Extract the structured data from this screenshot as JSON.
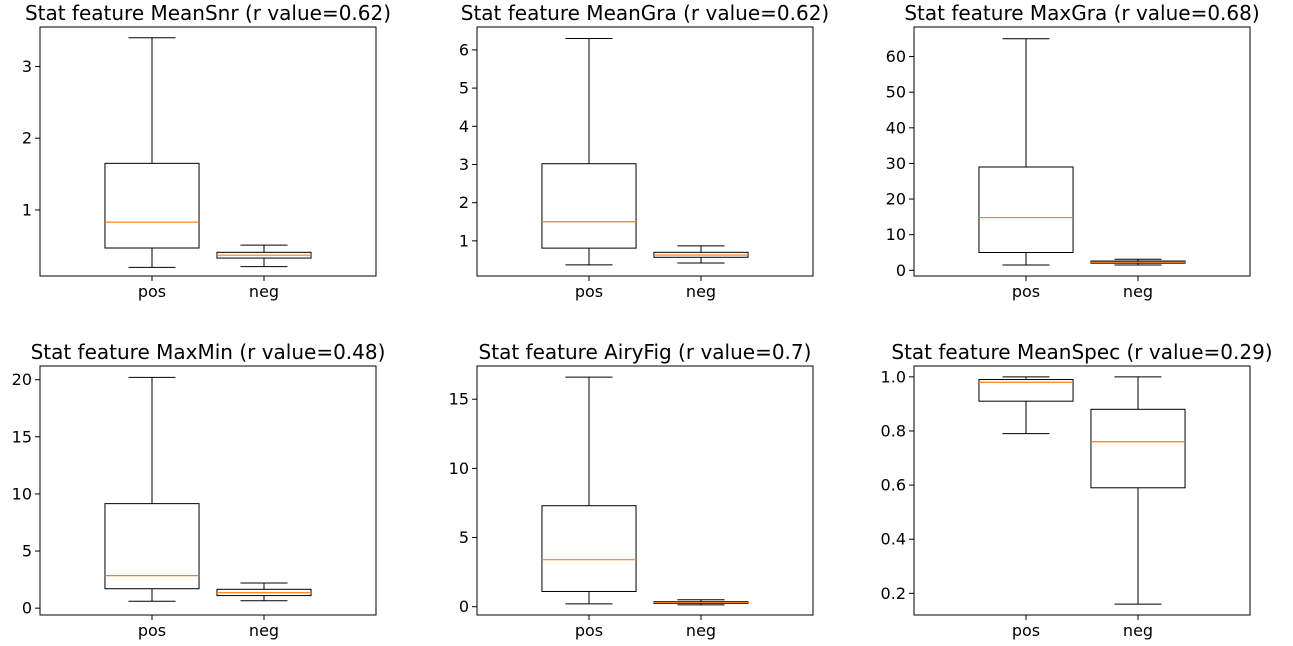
{
  "chart_data": [
    {
      "type": "box",
      "title": "Stat feature MeanSnr (r value=0.62)",
      "categories": [
        "pos",
        "neg"
      ],
      "yticks": [
        1,
        2,
        3
      ],
      "ylim": [
        0.08,
        3.55
      ],
      "boxes": [
        {
          "name": "pos",
          "whislo": 0.2,
          "q1": 0.47,
          "med": 0.83,
          "q3": 1.65,
          "whishi": 3.4
        },
        {
          "name": "neg",
          "whislo": 0.21,
          "q1": 0.33,
          "med": 0.37,
          "q3": 0.41,
          "whishi": 0.51
        }
      ],
      "colors": {
        "box": "#000000",
        "median": "#ff7f0e"
      }
    },
    {
      "type": "box",
      "title": "Stat feature MeanGra (r value=0.62)",
      "categories": [
        "pos",
        "neg"
      ],
      "yticks": [
        1,
        2,
        3,
        4,
        5,
        6
      ],
      "ylim": [
        0.08,
        6.6
      ],
      "boxes": [
        {
          "name": "pos",
          "whislo": 0.37,
          "q1": 0.81,
          "med": 1.5,
          "q3": 3.02,
          "whishi": 6.3
        },
        {
          "name": "neg",
          "whislo": 0.42,
          "q1": 0.57,
          "med": 0.63,
          "q3": 0.7,
          "whishi": 0.87
        }
      ],
      "colors": {
        "box": "#000000",
        "median": "#ff7f0e"
      }
    },
    {
      "type": "box",
      "title": "Stat feature MaxGra (r value=0.68)",
      "categories": [
        "pos",
        "neg"
      ],
      "yticks": [
        0,
        10,
        20,
        30,
        40,
        50,
        60
      ],
      "ylim": [
        -1.6,
        68.3
      ],
      "boxes": [
        {
          "name": "pos",
          "whislo": 1.5,
          "q1": 5.0,
          "med": 14.8,
          "q3": 29.0,
          "whishi": 65.0
        },
        {
          "name": "neg",
          "whislo": 1.5,
          "q1": 2.0,
          "med": 2.3,
          "q3": 2.6,
          "whishi": 3.1
        }
      ],
      "colors": {
        "box": "#000000",
        "median": "#ff7f0e"
      }
    },
    {
      "type": "box",
      "title": "Stat feature MaxMin (r value=0.48)",
      "categories": [
        "pos",
        "neg"
      ],
      "yticks": [
        0,
        5,
        10,
        15,
        20
      ],
      "ylim": [
        -0.6,
        21.2
      ],
      "boxes": [
        {
          "name": "pos",
          "whislo": 0.6,
          "q1": 1.7,
          "med": 2.85,
          "q3": 9.15,
          "whishi": 20.2
        },
        {
          "name": "neg",
          "whislo": 0.65,
          "q1": 1.1,
          "med": 1.35,
          "q3": 1.65,
          "whishi": 2.2
        }
      ],
      "colors": {
        "box": "#000000",
        "median": "#ff7f0e"
      }
    },
    {
      "type": "box",
      "title": "Stat feature AiryFig (r value=0.7)",
      "categories": [
        "pos",
        "neg"
      ],
      "yticks": [
        0,
        5,
        10,
        15
      ],
      "ylim": [
        -0.6,
        17.4
      ],
      "boxes": [
        {
          "name": "pos",
          "whislo": 0.2,
          "q1": 1.1,
          "med": 3.4,
          "q3": 7.3,
          "whishi": 16.6
        },
        {
          "name": "neg",
          "whislo": 0.13,
          "q1": 0.24,
          "med": 0.3,
          "q3": 0.36,
          "whishi": 0.5
        }
      ],
      "colors": {
        "box": "#000000",
        "median": "#ff7f0e"
      }
    },
    {
      "type": "box",
      "title": "Stat feature MeanSpec (r value=0.29)",
      "categories": [
        "pos",
        "neg"
      ],
      "yticks": [
        0.2,
        0.4,
        0.6,
        0.8,
        1.0
      ],
      "yticklabels": [
        "0.2",
        "0.4",
        "0.6",
        "0.8",
        "1.0"
      ],
      "ylim": [
        0.12,
        1.04
      ],
      "boxes": [
        {
          "name": "pos",
          "whislo": 0.79,
          "q1": 0.91,
          "med": 0.98,
          "q3": 0.99,
          "whishi": 1.0
        },
        {
          "name": "neg",
          "whislo": 0.16,
          "q1": 0.59,
          "med": 0.76,
          "q3": 0.88,
          "whishi": 1.0
        }
      ],
      "colors": {
        "box": "#000000",
        "median": "#ff7f0e"
      }
    }
  ]
}
